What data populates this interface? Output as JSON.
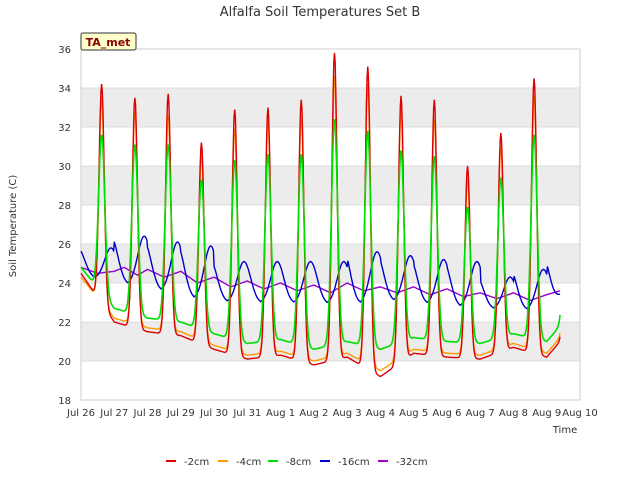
{
  "chart_data": {
    "type": "line",
    "title": "Alfalfa Soil Temperatures Set B",
    "xlabel": "Time",
    "ylabel": "Soil Temperature (C)",
    "badge": "TA_met",
    "ylim": [
      18,
      36
    ],
    "yticks": [
      "18",
      "20",
      "22",
      "24",
      "26",
      "28",
      "30",
      "32",
      "34",
      "36"
    ],
    "xlim": [
      0,
      15
    ],
    "xticks": [
      "Jul 26",
      "Jul 27",
      "Jul 28",
      "Jul 29",
      "Jul 30",
      "Jul 31",
      "Aug 1",
      "Aug 2",
      "Aug 3",
      "Aug 4",
      "Aug 5",
      "Aug 6",
      "Aug 7",
      "Aug 8",
      "Aug 9",
      "Aug 10"
    ],
    "grid": true,
    "legend_position": "bottom",
    "x_days": [
      0,
      1,
      2,
      3,
      4,
      5,
      6,
      7,
      8,
      9,
      10,
      11,
      12,
      13,
      14,
      14.4
    ],
    "series": [
      {
        "name": "-2cm",
        "color": "#dd0000",
        "daily_max": [
          34.2,
          33.5,
          33.7,
          31.2,
          32.9,
          33.0,
          33.4,
          35.8,
          35.1,
          33.6,
          33.4,
          30.0,
          31.7,
          34.5
        ],
        "daily_min": [
          24.5,
          22.0,
          21.5,
          21.3,
          20.6,
          20.1,
          20.3,
          19.8,
          20.2,
          19.2,
          20.4,
          20.2,
          20.1,
          20.7,
          20.2,
          22.2
        ]
      },
      {
        "name": "-4cm",
        "color": "#ff9900",
        "daily_max": [
          33.5,
          32.8,
          32.6,
          30.6,
          31.9,
          32.3,
          32.5,
          34.6,
          34.2,
          32.9,
          32.4,
          29.3,
          31.0,
          33.6
        ],
        "daily_min": [
          24.3,
          22.2,
          21.7,
          21.5,
          20.8,
          20.3,
          20.5,
          20.0,
          20.4,
          19.5,
          20.6,
          20.4,
          20.3,
          20.9,
          20.4,
          22.4
        ]
      },
      {
        "name": "-8cm",
        "color": "#00dd00",
        "daily_max": [
          31.6,
          31.1,
          31.1,
          29.3,
          30.3,
          30.6,
          30.6,
          32.4,
          31.8,
          30.8,
          30.5,
          27.9,
          29.4,
          31.6
        ],
        "daily_min": [
          24.8,
          22.7,
          22.2,
          22.0,
          21.4,
          20.9,
          21.1,
          20.6,
          21.0,
          20.6,
          21.2,
          21.0,
          20.9,
          21.4,
          21.0,
          23.0
        ]
      },
      {
        "name": "-16cm",
        "color": "#0000cc",
        "daily_max": [
          25.8,
          26.4,
          26.1,
          25.9,
          25.1,
          25.1,
          25.1,
          25.1,
          25.6,
          25.4,
          25.2,
          25.1,
          24.3,
          24.7,
          25.3
        ],
        "daily_min": [
          24.4,
          24.0,
          23.8,
          23.3,
          23.0,
          23.0,
          22.9,
          23.0,
          22.8,
          23.1,
          23.0,
          22.8,
          22.7,
          22.6,
          22.6,
          24.5
        ]
      },
      {
        "name": "-32cm",
        "color": "#9900cc",
        "x": [
          0,
          0.5,
          1,
          1.3,
          1.7,
          2,
          2.5,
          3,
          3.5,
          4,
          4.5,
          5,
          5.5,
          6,
          6.5,
          7,
          7.5,
          8,
          8.5,
          9,
          9.5,
          10,
          10.5,
          11,
          11.5,
          12,
          12.5,
          13,
          13.5,
          14,
          14.4
        ],
        "y": [
          24.8,
          24.5,
          24.6,
          24.8,
          24.4,
          24.7,
          24.3,
          24.6,
          24.0,
          24.3,
          23.8,
          24.1,
          23.7,
          24.0,
          23.6,
          23.9,
          23.5,
          24.0,
          23.6,
          23.8,
          23.5,
          23.8,
          23.4,
          23.7,
          23.3,
          23.5,
          23.2,
          23.5,
          23.1,
          23.4,
          23.6
        ]
      }
    ]
  }
}
